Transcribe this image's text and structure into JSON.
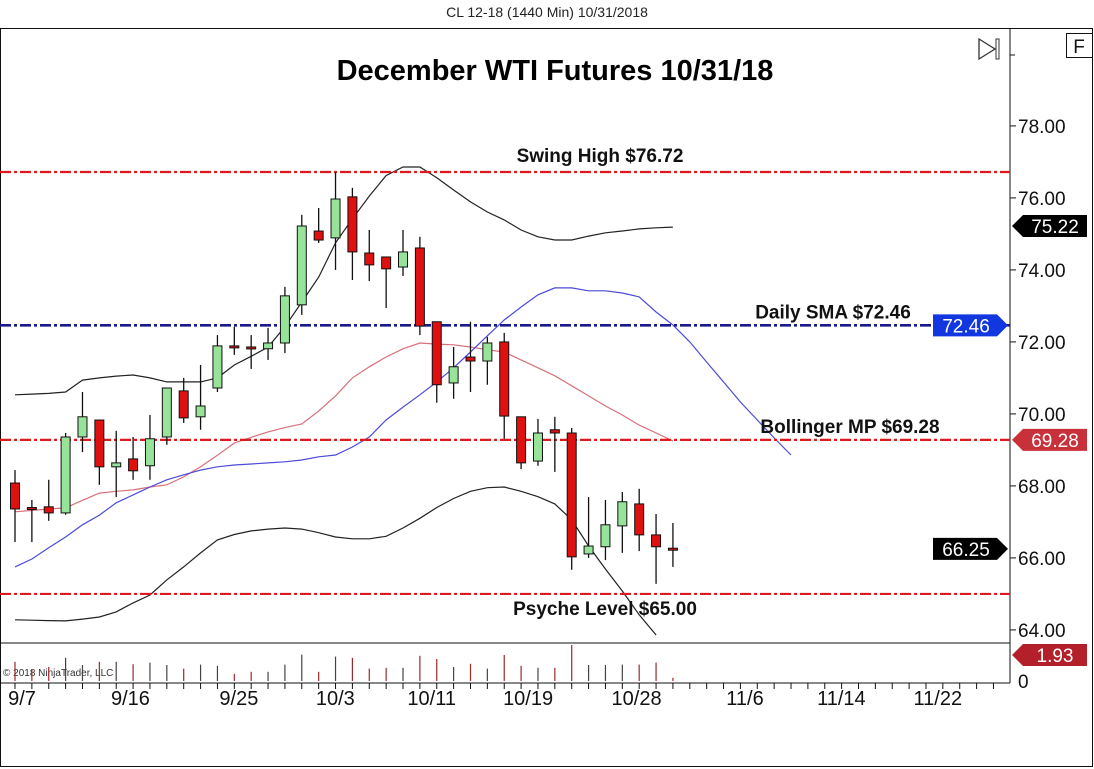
{
  "window": {
    "title": "CL 12-18 (1440 Min)  10/31/2018"
  },
  "toolbar": {
    "scroll_end_icon": "scroll-to-end-icon",
    "f_button": "F"
  },
  "copyright": "© 2018 NinjaTrader, LLC",
  "chart_data": {
    "type": "candlestick",
    "title": "December WTI Futures 10/31/18",
    "ylim": [
      63.72,
      80.72
    ],
    "y_ticks": [
      {
        "value": 78,
        "label": "78.00"
      },
      {
        "value": 76,
        "label": "76.00"
      },
      {
        "value": 74,
        "label": "74.00"
      },
      {
        "value": 72,
        "label": "72.00"
      },
      {
        "value": 70,
        "label": "70.00"
      },
      {
        "value": 68,
        "label": "68.00"
      },
      {
        "value": 66,
        "label": "66.00"
      },
      {
        "value": 64,
        "label": "64.00"
      }
    ],
    "x_ticks": [
      {
        "date": "2018-09-07",
        "label": "9/7"
      },
      {
        "date": "2018-09-16",
        "label": "9/16"
      },
      {
        "date": "2018-09-25",
        "label": "9/25"
      },
      {
        "date": "2018-10-03",
        "label": "10/3"
      },
      {
        "date": "2018-10-11",
        "label": "10/11"
      },
      {
        "date": "2018-10-19",
        "label": "10/19"
      },
      {
        "date": "2018-10-28",
        "label": "10/28"
      },
      {
        "date": "2018-11-06",
        "label": "11/6"
      },
      {
        "date": "2018-11-14",
        "label": "11/14"
      },
      {
        "date": "2018-11-22",
        "label": "11/22"
      }
    ],
    "candle_fields": [
      "date",
      "open",
      "high",
      "low",
      "close"
    ],
    "candles": [
      [
        "9/6",
        68.08,
        68.44,
        66.44,
        67.36
      ],
      [
        "9/7",
        67.4,
        67.61,
        66.44,
        67.38
      ],
      [
        "9/10",
        67.42,
        68.17,
        67.03,
        67.25
      ],
      [
        "9/11",
        67.25,
        69.47,
        67.2,
        69.36
      ],
      [
        "9/12",
        69.36,
        70.61,
        68.94,
        69.92
      ],
      [
        "9/13",
        69.83,
        69.83,
        68.03,
        68.53
      ],
      [
        "9/14",
        68.53,
        69.53,
        67.69,
        68.64
      ],
      [
        "9/17",
        68.75,
        69.36,
        68.17,
        68.42
      ],
      [
        "9/18",
        68.56,
        69.97,
        68.17,
        69.31
      ],
      [
        "9/19",
        69.36,
        70.72,
        69.14,
        70.72
      ],
      [
        "9/20",
        70.64,
        71.0,
        69.75,
        69.89
      ],
      [
        "9/21",
        69.92,
        71.36,
        69.56,
        70.22
      ],
      [
        "9/24",
        70.72,
        72.19,
        70.61,
        71.89
      ],
      [
        "9/25",
        71.89,
        72.42,
        71.64,
        71.87
      ],
      [
        "9/26",
        71.86,
        72.19,
        71.25,
        71.84
      ],
      [
        "9/27",
        71.81,
        72.39,
        71.5,
        71.97
      ],
      [
        "9/28",
        71.97,
        73.53,
        71.69,
        73.28
      ],
      [
        "10/1",
        73.03,
        75.53,
        72.75,
        75.22
      ],
      [
        "10/2",
        75.08,
        75.72,
        74.75,
        74.83
      ],
      [
        "10/3",
        74.89,
        76.72,
        74.0,
        75.97
      ],
      [
        "10/4",
        76.03,
        76.28,
        73.72,
        74.5
      ],
      [
        "10/5",
        74.47,
        75.11,
        73.69,
        74.14
      ],
      [
        "10/8",
        74.36,
        74.36,
        72.94,
        74.03
      ],
      [
        "10/9",
        74.08,
        75.11,
        73.83,
        74.5
      ],
      [
        "10/10",
        74.61,
        74.92,
        72.19,
        72.44
      ],
      [
        "10/11",
        72.56,
        72.56,
        70.31,
        70.81
      ],
      [
        "10/12",
        70.86,
        71.86,
        70.42,
        71.31
      ],
      [
        "10/15",
        71.58,
        72.56,
        70.61,
        71.47
      ],
      [
        "10/16",
        71.47,
        72.14,
        70.81,
        71.97
      ],
      [
        "10/17",
        72.0,
        72.25,
        69.31,
        69.94
      ],
      [
        "10/18",
        69.92,
        69.92,
        68.47,
        68.64
      ],
      [
        "10/19",
        68.69,
        69.86,
        68.56,
        69.47
      ],
      [
        "10/22",
        69.56,
        69.92,
        68.39,
        69.47
      ],
      [
        "10/23",
        69.47,
        69.61,
        65.67,
        66.03
      ],
      [
        "10/24",
        66.11,
        67.69,
        66.0,
        66.33
      ],
      [
        "10/25",
        66.31,
        67.61,
        65.94,
        66.92
      ],
      [
        "10/26",
        66.89,
        67.83,
        66.14,
        67.56
      ],
      [
        "10/29",
        67.5,
        67.92,
        66.19,
        66.64
      ],
      [
        "10/30",
        66.64,
        67.22,
        65.28,
        66.31
      ],
      [
        "10/31",
        66.27,
        66.97,
        65.75,
        66.25
      ]
    ],
    "indicators": [
      {
        "color": "#222222",
        "values": [
          70.53,
          70.55,
          70.57,
          70.61,
          70.94,
          71.0,
          71.05,
          71.08,
          71.0,
          70.89,
          70.89,
          70.89,
          71.0,
          71.36,
          71.6,
          71.86,
          72.42,
          73.11,
          73.8,
          74.75,
          75.42,
          76.05,
          76.62,
          76.86,
          76.86,
          76.56,
          76.22,
          75.89,
          75.61,
          75.39,
          75.11,
          74.92,
          74.83,
          74.83,
          74.94,
          75.03,
          75.08,
          75.14,
          75.17,
          75.19
        ]
      },
      {
        "color": "#222222",
        "values": [
          64.28,
          64.27,
          64.26,
          64.25,
          64.3,
          64.36,
          64.5,
          64.75,
          64.97,
          65.39,
          65.75,
          66.14,
          66.5,
          66.65,
          66.75,
          66.8,
          66.83,
          66.8,
          66.7,
          66.58,
          66.53,
          66.53,
          66.6,
          66.83,
          67.1,
          67.4,
          67.65,
          67.85,
          67.95,
          67.97,
          67.85,
          67.7,
          67.5,
          67.06,
          66.33,
          65.69,
          65.08,
          64.42,
          63.86
        ]
      },
      {
        "color": "#d8707c",
        "values": [
          67.28,
          67.32,
          67.36,
          67.39,
          67.6,
          67.8,
          67.85,
          67.89,
          67.97,
          68.03,
          68.25,
          68.53,
          68.85,
          69.19,
          69.35,
          69.5,
          69.62,
          69.72,
          70.08,
          70.5,
          71.0,
          71.31,
          71.58,
          71.81,
          71.97,
          71.94,
          71.92,
          71.86,
          71.78,
          71.72,
          71.5,
          71.28,
          71.06,
          70.78,
          70.5,
          70.22,
          69.97,
          69.69,
          69.47,
          69.25
        ]
      },
      {
        "color": "#4b4bd8",
        "values": [
          65.75,
          65.97,
          66.28,
          66.58,
          66.92,
          67.19,
          67.53,
          67.75,
          67.97,
          68.17,
          68.31,
          68.44,
          68.53,
          68.58,
          68.61,
          68.64,
          68.67,
          68.72,
          68.81,
          68.86,
          69.08,
          69.36,
          69.83,
          70.19,
          70.53,
          70.89,
          71.28,
          71.72,
          72.17,
          72.61,
          72.97,
          73.31,
          73.5,
          73.5,
          73.42,
          73.42,
          73.36,
          73.25,
          72.83,
          72.47,
          72.0,
          71.44,
          70.89,
          70.33,
          69.83,
          69.33,
          68.86
        ]
      }
    ],
    "levels": [
      {
        "label": "Swing High $76.72",
        "value": 76.72,
        "color": "#e0191c"
      },
      {
        "label": "Daily SMA $72.46",
        "value": 72.46,
        "color": "#1a1a8c"
      },
      {
        "label": "Bollinger MP $69.28",
        "value": 69.28,
        "color": "#e0191c"
      },
      {
        "label": "Psyche Level $65.00",
        "value": 65.0,
        "color": "#e0191c"
      }
    ],
    "price_markers": [
      {
        "label": "75.22",
        "value": 75.22,
        "color": "#000000"
      },
      {
        "label": "72.46",
        "value": 72.46,
        "color": "#1237e0"
      },
      {
        "label": "69.28",
        "value": 69.28,
        "color": "#c8303a"
      },
      {
        "label": "66.25",
        "value": 66.25,
        "color": "#000000"
      }
    ],
    "colors": {
      "up": "#98e39a",
      "down": "#e01010"
    },
    "volume": {
      "values": [
        48,
        30,
        35,
        58,
        40,
        48,
        48,
        42,
        46,
        40,
        31,
        41,
        38,
        18,
        23,
        23,
        41,
        66,
        23,
        61,
        58,
        31,
        33,
        33,
        63,
        55,
        35,
        43,
        31,
        65,
        38,
        33,
        33,
        90,
        40,
        40,
        41,
        41,
        46,
        8
      ],
      "axis_label": "0",
      "marker": {
        "label": "1.93",
        "color": "#b3202a"
      }
    }
  }
}
